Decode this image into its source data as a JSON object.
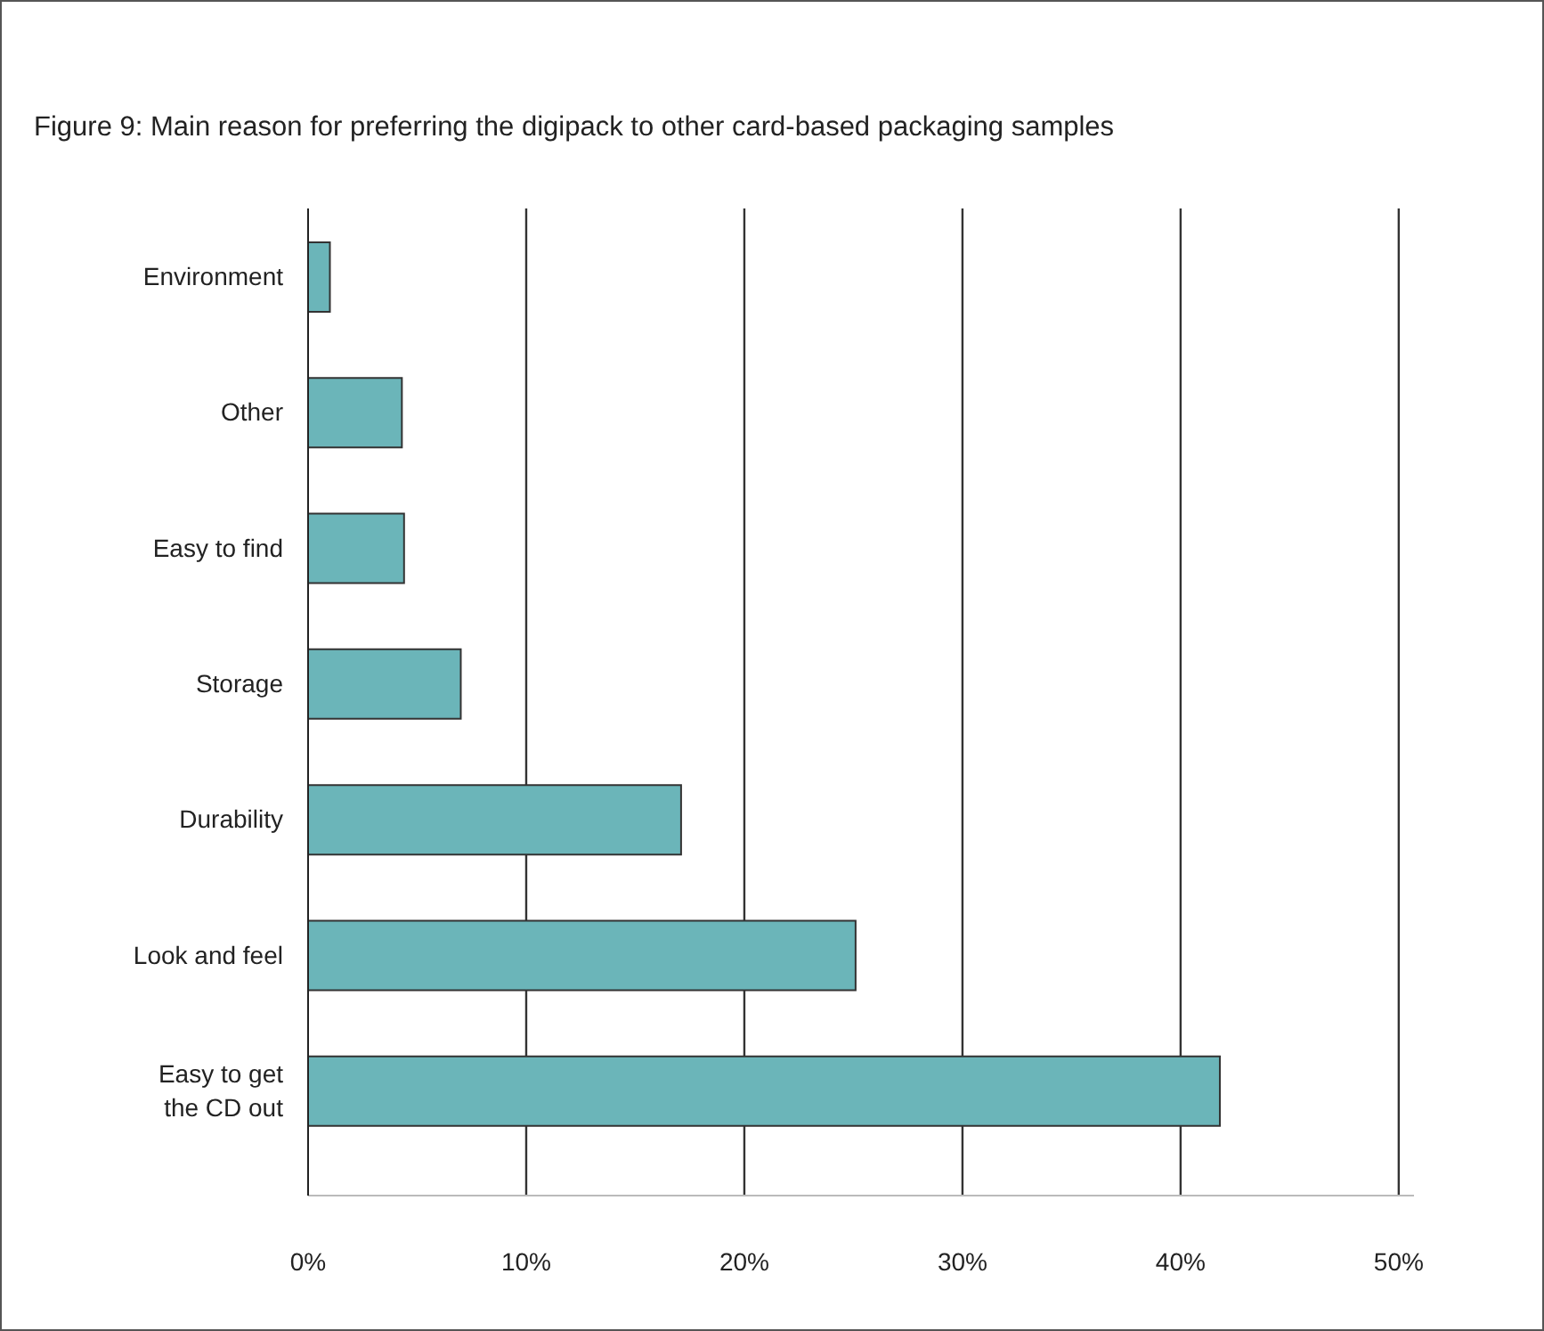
{
  "chart_data": {
    "type": "bar",
    "orientation": "horizontal",
    "title": "Figure 9: Main reason for preferring the digipack to other card-based packaging samples",
    "categories": [
      "Environment",
      "Other",
      "Easy to find",
      "Storage",
      "Durability",
      "Look and feel",
      "Easy to get the CD out"
    ],
    "values": [
      1.0,
      4.3,
      4.4,
      7.0,
      17.1,
      25.1,
      41.8
    ],
    "color": "#6bb5b9",
    "xlim": [
      0,
      50.7
    ],
    "xticks": [
      {
        "value": 0,
        "label": "0%"
      },
      {
        "value": 10,
        "label": "10%"
      },
      {
        "value": 20,
        "label": "20%"
      },
      {
        "value": 30,
        "label": "30%"
      },
      {
        "value": 40,
        "label": "40%"
      },
      {
        "value": 50,
        "label": "50%"
      }
    ],
    "grid": "x",
    "legend": false
  }
}
